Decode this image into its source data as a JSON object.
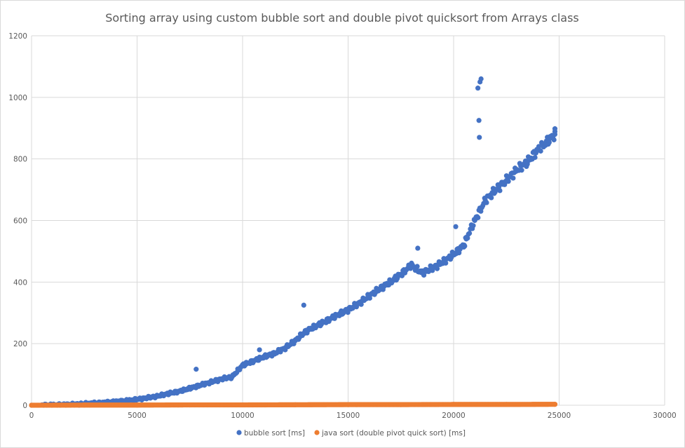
{
  "chart_data": {
    "type": "scatter",
    "title": "Sorting array using custom bubble sort and double pivot quicksort from Arrays class",
    "xlabel": "",
    "ylabel": "",
    "xlim": [
      0,
      30000
    ],
    "ylim": [
      0,
      1200
    ],
    "x_ticks": [
      "0",
      "5000",
      "10000",
      "15000",
      "20000",
      "25000",
      "30000"
    ],
    "y_ticks": [
      "0",
      "200",
      "400",
      "600",
      "800",
      "1000",
      "1200"
    ],
    "grid": "both",
    "legend_position": "bottom",
    "series": [
      {
        "name": "bubble sort [ms]",
        "color": "#4472C4",
        "points": [
          [
            0,
            0
          ],
          [
            500,
            0.5
          ],
          [
            1000,
            1
          ],
          [
            1500,
            2
          ],
          [
            2000,
            3
          ],
          [
            2500,
            5
          ],
          [
            3000,
            7
          ],
          [
            3500,
            9
          ],
          [
            4000,
            12
          ],
          [
            4500,
            15
          ],
          [
            5000,
            19
          ],
          [
            5500,
            24
          ],
          [
            6000,
            30
          ],
          [
            6500,
            38
          ],
          [
            7000,
            45
          ],
          [
            7500,
            55
          ],
          [
            7800,
            117
          ],
          [
            8000,
            65
          ],
          [
            8500,
            75
          ],
          [
            9000,
            85
          ],
          [
            9500,
            92
          ],
          [
            10000,
            130
          ],
          [
            10500,
            143
          ],
          [
            10800,
            180
          ],
          [
            11000,
            157
          ],
          [
            11500,
            168
          ],
          [
            12000,
            185
          ],
          [
            12500,
            210
          ],
          [
            12900,
            325
          ],
          [
            13000,
            240
          ],
          [
            13500,
            258
          ],
          [
            14000,
            275
          ],
          [
            14500,
            293
          ],
          [
            15000,
            310
          ],
          [
            15500,
            330
          ],
          [
            16000,
            355
          ],
          [
            16500,
            378
          ],
          [
            17000,
            400
          ],
          [
            17500,
            425
          ],
          [
            18000,
            455
          ],
          [
            18300,
            510
          ],
          [
            18500,
            430
          ],
          [
            19000,
            445
          ],
          [
            19500,
            465
          ],
          [
            20000,
            490
          ],
          [
            20100,
            580
          ],
          [
            20500,
            520
          ],
          [
            20600,
            540
          ],
          [
            21000,
            600
          ],
          [
            21200,
            925
          ],
          [
            21250,
            1050
          ],
          [
            21300,
            1060
          ],
          [
            21150,
            1030
          ],
          [
            21220,
            870
          ],
          [
            21500,
            665
          ],
          [
            22000,
            700
          ],
          [
            22500,
            730
          ],
          [
            23000,
            765
          ],
          [
            23500,
            790
          ],
          [
            24000,
            830
          ],
          [
            24500,
            860
          ],
          [
            24800,
            880
          ],
          [
            24800,
            898
          ]
        ]
      },
      {
        "name": "java sort (double pivot quick sort) [ms]",
        "color": "#ED7D31",
        "points": [
          [
            0,
            0
          ],
          [
            2500,
            0.5
          ],
          [
            5000,
            0.5
          ],
          [
            7500,
            1
          ],
          [
            10000,
            1
          ],
          [
            12500,
            1.5
          ],
          [
            15000,
            2
          ],
          [
            17500,
            2
          ],
          [
            20000,
            2.5
          ],
          [
            22500,
            2.5
          ],
          [
            24800,
            3
          ]
        ]
      }
    ]
  }
}
